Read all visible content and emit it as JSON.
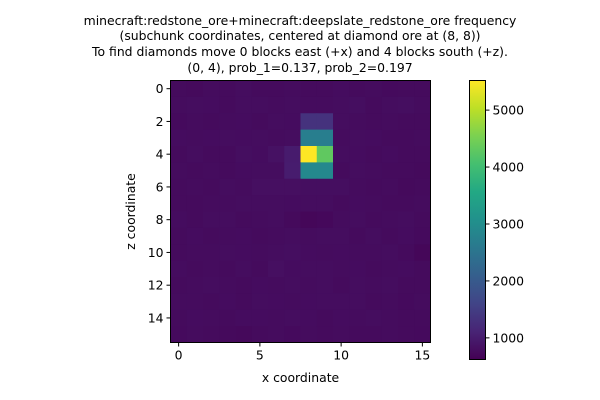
{
  "chart_data": {
    "type": "heatmap",
    "title_lines": [
      "minecraft:redstone_ore+minecraft:deepslate_redstone_ore frequency",
      "(subchunk coordinates, centered at diamond ore at (8, 8))",
      "To find diamonds move 0 blocks east (+x) and 4 blocks south (+z).",
      "(0, 4), prob_1=0.137, prob_2=0.197"
    ],
    "xlabel": "x coordinate",
    "ylabel": "z coordinate",
    "x_ticks": [
      0,
      5,
      10,
      15
    ],
    "y_ticks": [
      0,
      2,
      4,
      6,
      8,
      10,
      12,
      14
    ],
    "x_range": [
      -0.5,
      15.5
    ],
    "y_range": [
      -0.5,
      15.5
    ],
    "colormap": "viridis",
    "colorbar": {
      "vmin": 620,
      "vmax": 5520,
      "ticks": [
        1000,
        2000,
        3000,
        4000,
        5000
      ]
    },
    "grid": false,
    "values": [
      [
        760,
        745,
        770,
        760,
        790,
        760,
        760,
        770,
        760,
        760,
        780,
        760,
        770,
        750,
        760,
        760
      ],
      [
        770,
        790,
        780,
        760,
        790,
        790,
        770,
        790,
        770,
        770,
        790,
        800,
        760,
        790,
        800,
        770
      ],
      [
        750,
        770,
        760,
        770,
        780,
        760,
        790,
        780,
        1320,
        1320,
        790,
        770,
        760,
        770,
        760,
        760
      ],
      [
        780,
        770,
        780,
        790,
        780,
        790,
        770,
        790,
        2700,
        2700,
        770,
        790,
        780,
        760,
        760,
        770
      ],
      [
        760,
        790,
        760,
        760,
        800,
        780,
        850,
        990,
        5520,
        4300,
        790,
        780,
        760,
        780,
        760,
        760
      ],
      [
        770,
        760,
        770,
        760,
        780,
        790,
        790,
        1000,
        2900,
        2900,
        760,
        790,
        770,
        760,
        760,
        740
      ],
      [
        760,
        770,
        760,
        790,
        770,
        820,
        820,
        810,
        800,
        800,
        800,
        770,
        760,
        770,
        740,
        760
      ],
      [
        760,
        760,
        770,
        770,
        790,
        790,
        790,
        780,
        790,
        790,
        760,
        780,
        770,
        760,
        760,
        770
      ],
      [
        780,
        760,
        790,
        790,
        760,
        770,
        790,
        740,
        700,
        720,
        770,
        790,
        760,
        770,
        790,
        760
      ],
      [
        760,
        780,
        760,
        770,
        780,
        760,
        770,
        790,
        770,
        790,
        790,
        760,
        790,
        760,
        780,
        750
      ],
      [
        760,
        770,
        770,
        790,
        780,
        770,
        790,
        800,
        780,
        770,
        780,
        770,
        770,
        790,
        760,
        700
      ],
      [
        780,
        760,
        770,
        760,
        790,
        760,
        820,
        780,
        790,
        790,
        770,
        780,
        760,
        770,
        780,
        760
      ],
      [
        760,
        770,
        790,
        770,
        760,
        780,
        770,
        790,
        770,
        790,
        760,
        790,
        770,
        790,
        760,
        760
      ],
      [
        770,
        770,
        760,
        780,
        760,
        790,
        780,
        770,
        780,
        790,
        790,
        790,
        760,
        770,
        750,
        770
      ],
      [
        760,
        780,
        770,
        760,
        780,
        780,
        770,
        790,
        780,
        760,
        780,
        770,
        790,
        770,
        760,
        760
      ],
      [
        750,
        770,
        760,
        740,
        730,
        760,
        770,
        750,
        770,
        760,
        770,
        760,
        760,
        770,
        760,
        750
      ]
    ]
  }
}
